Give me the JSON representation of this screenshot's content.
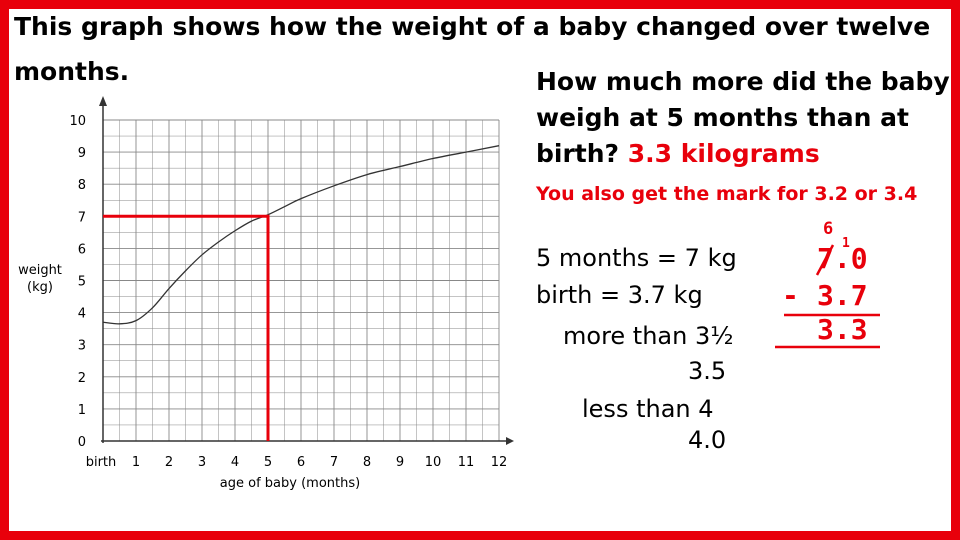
{
  "slide": {
    "title_line1": "This graph shows how the weight of a baby changed over twelve",
    "title_line2": "months.",
    "question_line1": "How much more did the baby",
    "question_line2": "weigh at 5 months than at",
    "question_line3_prefix": "birth?",
    "answer": "3.3 kilograms",
    "note": "You also get the mark for 3.2 or 3.4",
    "work": {
      "line1": "5 months = 7 kg",
      "line2": "birth = 3.7 kg",
      "line3": "more than 3½",
      "line4": "3.5",
      "line5": "less than 4",
      "line6": "4.0"
    },
    "calc": {
      "top": "7.0",
      "minus": "-",
      "bottom": "3.7",
      "result": "3.3",
      "borrow": "6",
      "carry_one": "1"
    },
    "colors": {
      "frame": "#e8000b",
      "highlight": "#e8000b",
      "curve": "#333333",
      "grid": "#888888"
    }
  },
  "chart_data": {
    "type": "line",
    "xlabel": "age of baby (months)",
    "ylabel_line1": "weight",
    "ylabel_line2": "(kg)",
    "xlim": [
      0,
      12
    ],
    "ylim": [
      0,
      10
    ],
    "x_tick_labels": [
      "birth",
      "1",
      "2",
      "3",
      "4",
      "5",
      "6",
      "7",
      "8",
      "9",
      "10",
      "11",
      "12"
    ],
    "y_tick_labels": [
      "0",
      "1",
      "2",
      "3",
      "4",
      "5",
      "6",
      "7",
      "8",
      "9",
      "10"
    ],
    "grid": true,
    "series": [
      {
        "x": [
          0,
          0.5,
          1,
          1.5,
          2,
          2.5,
          3,
          3.5,
          4,
          4.5,
          5,
          5.5,
          6,
          7,
          8,
          9,
          10,
          11,
          12
        ],
        "y": [
          3.7,
          3.65,
          3.75,
          4.15,
          4.75,
          5.3,
          5.8,
          6.2,
          6.55,
          6.85,
          7.05,
          7.3,
          7.55,
          7.95,
          8.3,
          8.55,
          8.8,
          9.0,
          9.2
        ]
      }
    ],
    "highlight": {
      "x": 5,
      "y": 7
    }
  }
}
